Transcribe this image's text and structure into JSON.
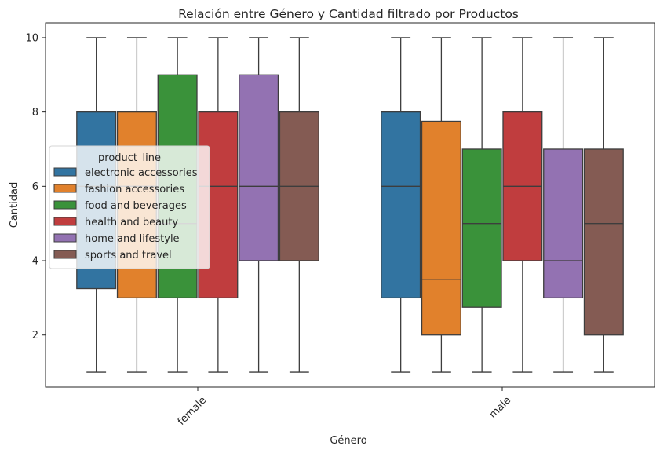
{
  "chart_data": {
    "type": "box",
    "title": "Relación entre Género y Cantidad filtrado por Productos",
    "xlabel": "Género",
    "ylabel": "Cantidad",
    "categories": [
      "female",
      "male"
    ],
    "yticks": [
      2,
      4,
      6,
      8,
      10
    ],
    "ylim": [
      0.6,
      10.4
    ],
    "grid": false,
    "legend": {
      "title": "product_line",
      "position": "center-left"
    },
    "series": [
      {
        "name": "electronic accessories",
        "color": "#3274a1",
        "boxes": [
          {
            "min": 1,
            "q1": 3.25,
            "median": 6,
            "q3": 8,
            "max": 10
          },
          {
            "min": 1,
            "q1": 3,
            "median": 6,
            "q3": 8,
            "max": 10
          }
        ]
      },
      {
        "name": "fashion accessories",
        "color": "#e1812c",
        "boxes": [
          {
            "min": 1,
            "q1": 3,
            "median": 6,
            "q3": 8,
            "max": 10
          },
          {
            "min": 1,
            "q1": 2,
            "median": 3.5,
            "q3": 7.75,
            "max": 10
          }
        ]
      },
      {
        "name": "food and beverages",
        "color": "#3a923a",
        "boxes": [
          {
            "min": 1,
            "q1": 3,
            "median": 5,
            "q3": 9,
            "max": 10
          },
          {
            "min": 1,
            "q1": 2.75,
            "median": 5,
            "q3": 7,
            "max": 10
          }
        ]
      },
      {
        "name": "health and beauty",
        "color": "#c03d3e",
        "boxes": [
          {
            "min": 1,
            "q1": 3,
            "median": 6,
            "q3": 8,
            "max": 10
          },
          {
            "min": 1,
            "q1": 4,
            "median": 6,
            "q3": 8,
            "max": 10
          }
        ]
      },
      {
        "name": "home and lifestyle",
        "color": "#9372b2",
        "boxes": [
          {
            "min": 1,
            "q1": 4,
            "median": 6,
            "q3": 9,
            "max": 10
          },
          {
            "min": 1,
            "q1": 3,
            "median": 4,
            "q3": 7,
            "max": 10
          }
        ]
      },
      {
        "name": "sports and travel",
        "color": "#845b53",
        "boxes": [
          {
            "min": 1,
            "q1": 4,
            "median": 6,
            "q3": 8,
            "max": 10
          },
          {
            "min": 1,
            "q1": 2,
            "median": 5,
            "q3": 7,
            "max": 10
          }
        ]
      }
    ]
  }
}
